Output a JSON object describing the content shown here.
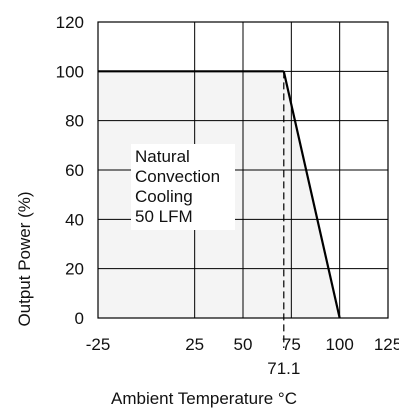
{
  "chart_data": {
    "type": "line",
    "xlabel": "Ambient Temperature °C",
    "ylabel": "Output Power (%)",
    "xlim": [
      -25,
      125
    ],
    "ylim": [
      0,
      120
    ],
    "x_ticks": [
      -25,
      25,
      50,
      75,
      100,
      125
    ],
    "x_tick_labels": [
      "-25",
      "25",
      "50",
      "75",
      "100",
      "125"
    ],
    "y_ticks": [
      0,
      20,
      40,
      60,
      80,
      100,
      120
    ],
    "y_tick_labels": [
      "0",
      "20",
      "40",
      "60",
      "80",
      "100",
      "120"
    ],
    "grid": true,
    "series": [
      {
        "x": [
          -25,
          71.1,
          100
        ],
        "y": [
          100,
          100,
          0
        ],
        "fill_under": true
      }
    ],
    "reference_line": {
      "x": 71.1,
      "label": "71.1",
      "style": "dashed"
    },
    "annotation": [
      "Natural",
      "Convection",
      "Cooling",
      "50 LFM"
    ],
    "colors": {
      "line": "#000000",
      "fill": "#f4f4f4",
      "grid": "#000000"
    }
  }
}
